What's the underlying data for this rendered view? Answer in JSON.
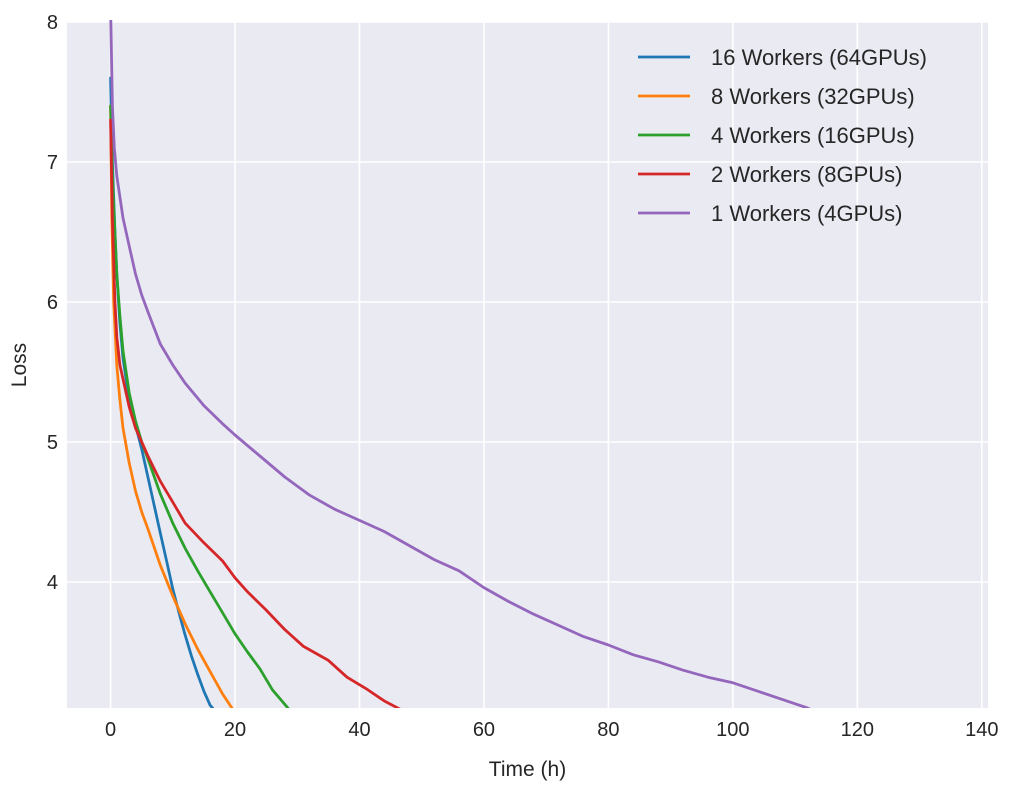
{
  "chart_data": {
    "type": "line",
    "title": "",
    "xlabel": "Time (h)",
    "ylabel": "Loss",
    "xlim": [
      -7,
      141
    ],
    "ylim": [
      3.1,
      8
    ],
    "xticks": [
      0,
      20,
      40,
      60,
      80,
      100,
      120,
      140
    ],
    "yticks": [
      4,
      5,
      6,
      7,
      8
    ],
    "grid": true,
    "legend_position": "top-right",
    "background": "#eaeaf2",
    "series": [
      {
        "name": "16 Workers (64GPUs)",
        "color": "#1f77b4",
        "x": [
          0,
          0.3,
          0.7,
          1.0,
          1.5,
          2.0,
          3.0,
          4.0,
          5.0,
          6.0,
          7.0,
          8.0,
          9.0,
          10.0,
          11.0,
          12.0,
          13.0,
          14.0,
          15.0,
          16.0,
          16.4
        ],
        "y": [
          7.6,
          7.0,
          6.5,
          6.2,
          5.85,
          5.6,
          5.3,
          5.12,
          4.95,
          4.75,
          4.55,
          4.35,
          4.15,
          3.95,
          3.78,
          3.62,
          3.47,
          3.34,
          3.22,
          3.12,
          3.1
        ]
      },
      {
        "name": "8 Workers (32GPUs)",
        "color": "#ff7f0e",
        "x": [
          0,
          0.2,
          0.5,
          1.0,
          1.5,
          2.0,
          3.0,
          4.0,
          5.0,
          6.0,
          8.0,
          10.0,
          12.0,
          14.0,
          16.0,
          18.0,
          19.5
        ],
        "y": [
          7.4,
          6.6,
          6.0,
          5.55,
          5.3,
          5.1,
          4.85,
          4.65,
          4.5,
          4.38,
          4.12,
          3.9,
          3.7,
          3.52,
          3.36,
          3.2,
          3.1
        ]
      },
      {
        "name": "4 Workers (16GPUs)",
        "color": "#2ca02c",
        "x": [
          0,
          0.3,
          0.7,
          1.0,
          1.5,
          2.0,
          3.0,
          4.0,
          5.0,
          6.0,
          8.0,
          10.0,
          12.0,
          14.0,
          16.0,
          18.0,
          20.0,
          22.0,
          24.0,
          26.0,
          28.5
        ],
        "y": [
          7.4,
          6.9,
          6.5,
          6.2,
          5.9,
          5.65,
          5.35,
          5.15,
          5.0,
          4.88,
          4.63,
          4.42,
          4.24,
          4.08,
          3.93,
          3.78,
          3.63,
          3.5,
          3.38,
          3.23,
          3.1
        ]
      },
      {
        "name": "2 Workers (8GPUs)",
        "color": "#d62728",
        "x": [
          0,
          0.3,
          0.7,
          1.0,
          1.5,
          2.0,
          3.0,
          4.0,
          5.0,
          6.0,
          8.0,
          10.0,
          12.0,
          15.0,
          18.0,
          20.0,
          22.0,
          25.0,
          28.0,
          31.0,
          35.0,
          38.0,
          41.0,
          44.0,
          47.0
        ],
        "y": [
          7.3,
          6.6,
          6.0,
          5.75,
          5.55,
          5.45,
          5.25,
          5.1,
          5.0,
          4.9,
          4.72,
          4.57,
          4.42,
          4.28,
          4.15,
          4.03,
          3.93,
          3.8,
          3.66,
          3.54,
          3.44,
          3.32,
          3.24,
          3.15,
          3.08
        ]
      },
      {
        "name": "1 Workers (4GPUs)",
        "color": "#9467bd",
        "x": [
          0,
          0.3,
          0.6,
          1.0,
          1.5,
          2.0,
          3.0,
          4.0,
          5.0,
          6.0,
          8.0,
          10.0,
          12.0,
          15.0,
          18.0,
          20.0,
          24.0,
          28.0,
          32.0,
          36.0,
          40.0,
          44.0,
          48.0,
          52.0,
          56.0,
          60.0,
          64.0,
          68.0,
          72.0,
          76.0,
          80.0,
          84.0,
          88.0,
          92.0,
          96.0,
          100.0,
          104.0,
          108.0,
          112.0,
          113.0
        ],
        "y": [
          8.1,
          7.4,
          7.1,
          6.9,
          6.75,
          6.6,
          6.4,
          6.2,
          6.05,
          5.93,
          5.7,
          5.55,
          5.42,
          5.26,
          5.13,
          5.05,
          4.9,
          4.75,
          4.62,
          4.52,
          4.44,
          4.36,
          4.26,
          4.16,
          4.08,
          3.96,
          3.86,
          3.77,
          3.69,
          3.61,
          3.55,
          3.48,
          3.43,
          3.37,
          3.32,
          3.28,
          3.22,
          3.16,
          3.1,
          3.08
        ]
      }
    ]
  }
}
